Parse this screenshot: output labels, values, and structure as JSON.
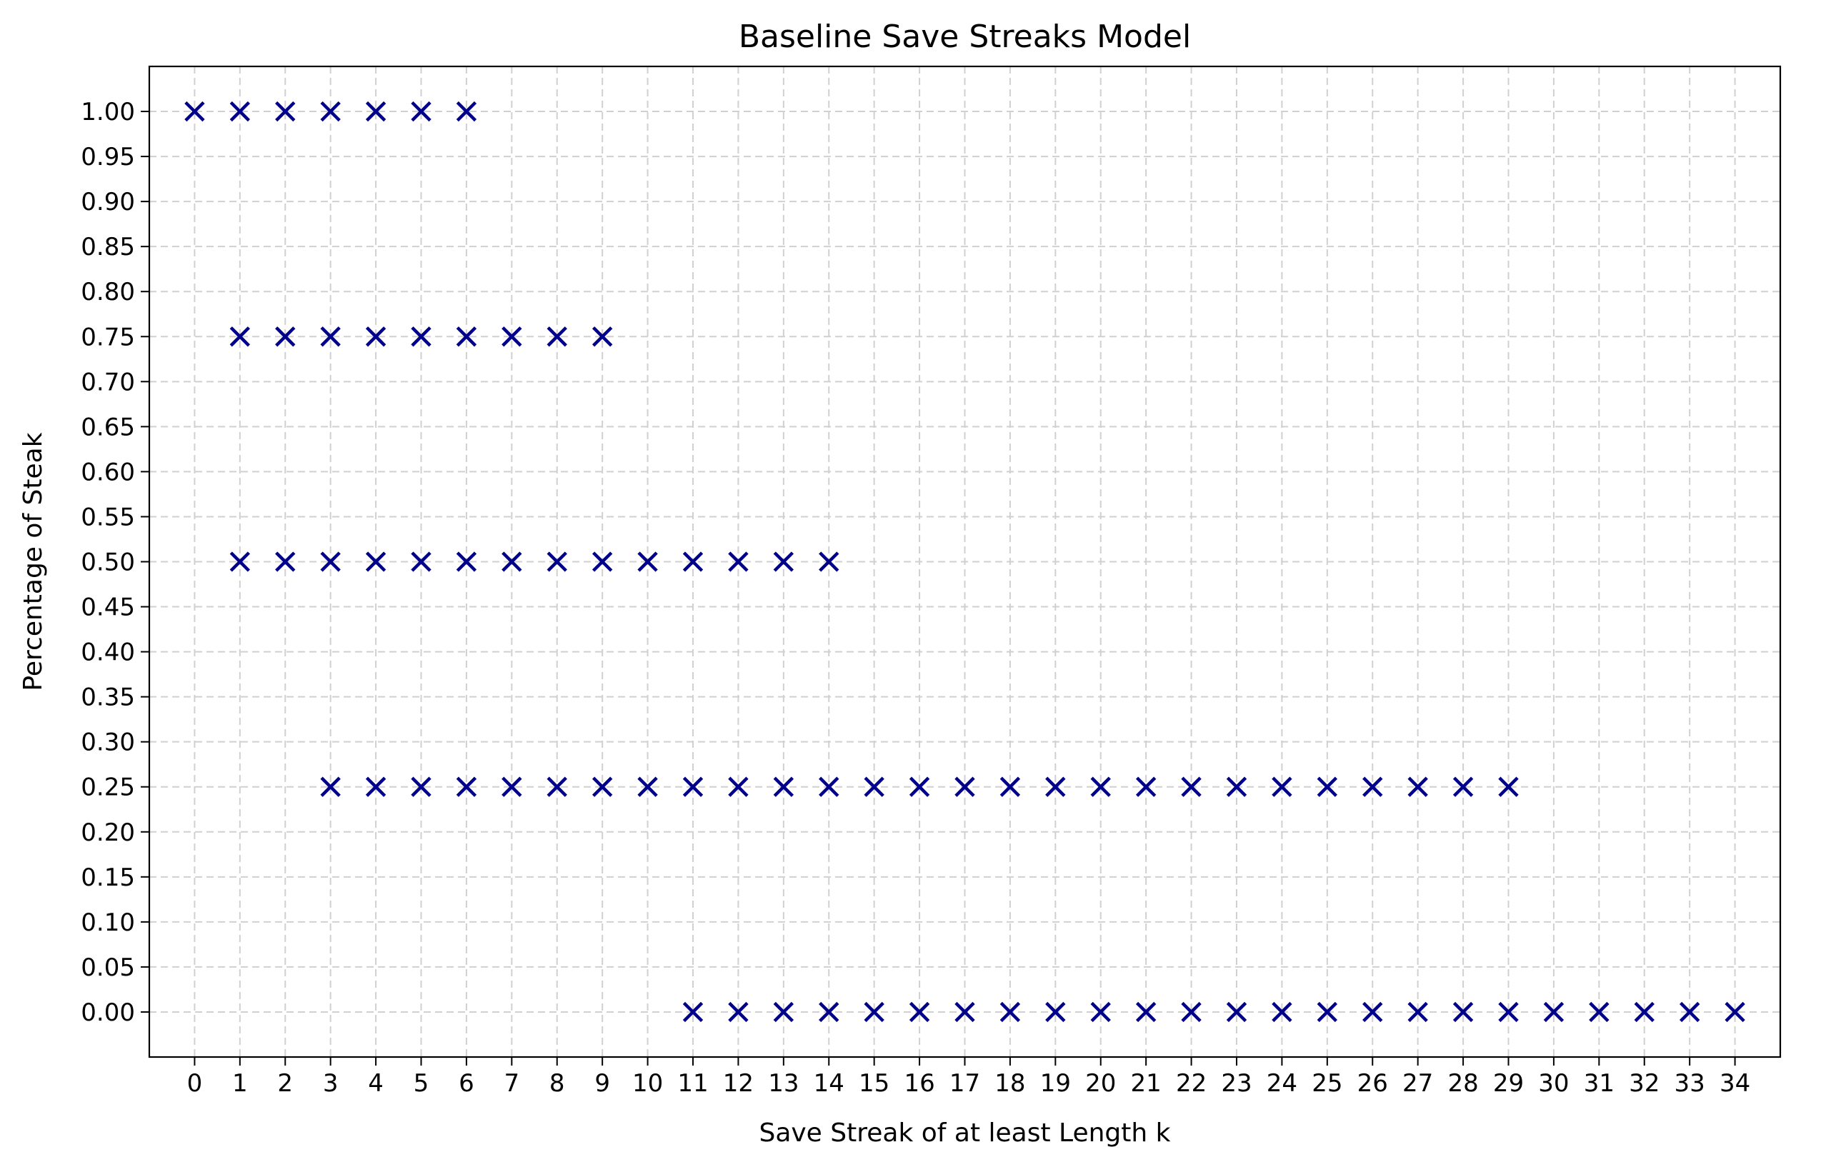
{
  "chart_data": {
    "type": "scatter",
    "title": "Baseline Save Streaks Model",
    "xlabel": "Save Streak of at least Length k",
    "ylabel": "Percentage of Steak",
    "xlim": [
      -1,
      35
    ],
    "ylim": [
      -0.05,
      1.05
    ],
    "xticks": [
      0,
      1,
      2,
      3,
      4,
      5,
      6,
      7,
      8,
      9,
      10,
      11,
      12,
      13,
      14,
      15,
      16,
      17,
      18,
      19,
      20,
      21,
      22,
      23,
      24,
      25,
      26,
      27,
      28,
      29,
      30,
      31,
      32,
      33,
      34
    ],
    "yticks": [
      0.0,
      0.05,
      0.1,
      0.15,
      0.2,
      0.25,
      0.3,
      0.35,
      0.4,
      0.45,
      0.5,
      0.55,
      0.6,
      0.65,
      0.7,
      0.75,
      0.8,
      0.85,
      0.9,
      0.95,
      1.0
    ],
    "grid": true,
    "marker": "x",
    "marker_color": "#00008b",
    "points": [
      [
        0,
        1.0
      ],
      [
        1,
        1.0
      ],
      [
        2,
        1.0
      ],
      [
        3,
        1.0
      ],
      [
        4,
        1.0
      ],
      [
        5,
        1.0
      ],
      [
        6,
        1.0
      ],
      [
        1,
        0.75
      ],
      [
        2,
        0.75
      ],
      [
        3,
        0.75
      ],
      [
        4,
        0.75
      ],
      [
        5,
        0.75
      ],
      [
        6,
        0.75
      ],
      [
        7,
        0.75
      ],
      [
        8,
        0.75
      ],
      [
        9,
        0.75
      ],
      [
        1,
        0.5
      ],
      [
        2,
        0.5
      ],
      [
        3,
        0.5
      ],
      [
        4,
        0.5
      ],
      [
        5,
        0.5
      ],
      [
        6,
        0.5
      ],
      [
        7,
        0.5
      ],
      [
        8,
        0.5
      ],
      [
        9,
        0.5
      ],
      [
        10,
        0.5
      ],
      [
        11,
        0.5
      ],
      [
        12,
        0.5
      ],
      [
        13,
        0.5
      ],
      [
        14,
        0.5
      ],
      [
        3,
        0.25
      ],
      [
        4,
        0.25
      ],
      [
        5,
        0.25
      ],
      [
        6,
        0.25
      ],
      [
        7,
        0.25
      ],
      [
        8,
        0.25
      ],
      [
        9,
        0.25
      ],
      [
        10,
        0.25
      ],
      [
        11,
        0.25
      ],
      [
        12,
        0.25
      ],
      [
        13,
        0.25
      ],
      [
        14,
        0.25
      ],
      [
        15,
        0.25
      ],
      [
        16,
        0.25
      ],
      [
        17,
        0.25
      ],
      [
        18,
        0.25
      ],
      [
        19,
        0.25
      ],
      [
        20,
        0.25
      ],
      [
        21,
        0.25
      ],
      [
        22,
        0.25
      ],
      [
        23,
        0.25
      ],
      [
        24,
        0.25
      ],
      [
        25,
        0.25
      ],
      [
        26,
        0.25
      ],
      [
        27,
        0.25
      ],
      [
        28,
        0.25
      ],
      [
        29,
        0.25
      ],
      [
        11,
        0.0
      ],
      [
        12,
        0.0
      ],
      [
        13,
        0.0
      ],
      [
        14,
        0.0
      ],
      [
        15,
        0.0
      ],
      [
        16,
        0.0
      ],
      [
        17,
        0.0
      ],
      [
        18,
        0.0
      ],
      [
        19,
        0.0
      ],
      [
        20,
        0.0
      ],
      [
        21,
        0.0
      ],
      [
        22,
        0.0
      ],
      [
        23,
        0.0
      ],
      [
        24,
        0.0
      ],
      [
        25,
        0.0
      ],
      [
        26,
        0.0
      ],
      [
        27,
        0.0
      ],
      [
        28,
        0.0
      ],
      [
        29,
        0.0
      ],
      [
        30,
        0.0
      ],
      [
        31,
        0.0
      ],
      [
        32,
        0.0
      ],
      [
        33,
        0.0
      ],
      [
        34,
        0.0
      ]
    ]
  }
}
